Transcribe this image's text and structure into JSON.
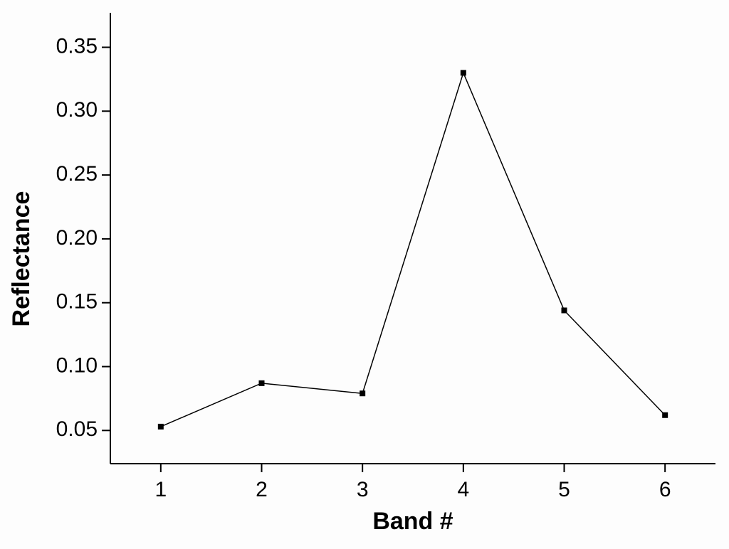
{
  "chart_data": {
    "type": "line",
    "x_label": "Band #",
    "y_label": "Reflectance",
    "x": [
      1,
      2,
      3,
      4,
      5,
      6
    ],
    "series": [
      {
        "name": "Reflectance",
        "color": "#000000",
        "values": [
          0.053,
          0.087,
          0.079,
          0.33,
          0.144,
          0.062
        ]
      }
    ],
    "xlim": [
      0.5,
      6.5
    ],
    "xticks": [
      1,
      2,
      3,
      4,
      5,
      6
    ],
    "ylim": [
      0.024,
      0.377
    ],
    "yticks": [
      0.05,
      {
        "value": 0.1,
        "label": "0.10"
      },
      0.15,
      {
        "value": 0.2,
        "label": "0.20"
      },
      0.25,
      {
        "value": 0.3,
        "label": "0.30"
      },
      0.35
    ],
    "grid": false,
    "markers": true
  }
}
